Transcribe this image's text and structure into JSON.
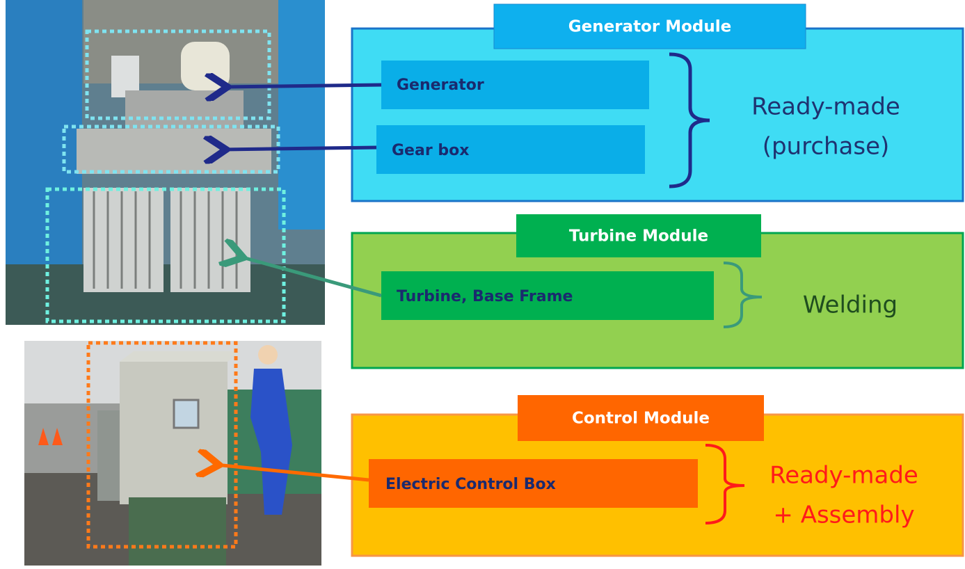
{
  "modules": [
    {
      "title": "Generator Module",
      "items": [
        "Generator",
        "Gear box"
      ],
      "note": [
        "Ready-made",
        "(purchase)"
      ]
    },
    {
      "title": "Turbine Module",
      "items": [
        "Turbine, Base Frame"
      ],
      "note": [
        "Welding"
      ]
    },
    {
      "title": "Control Module",
      "items": [
        "Electric Control Box"
      ],
      "note": [
        "Ready-made",
        "+ Assembly"
      ]
    }
  ]
}
